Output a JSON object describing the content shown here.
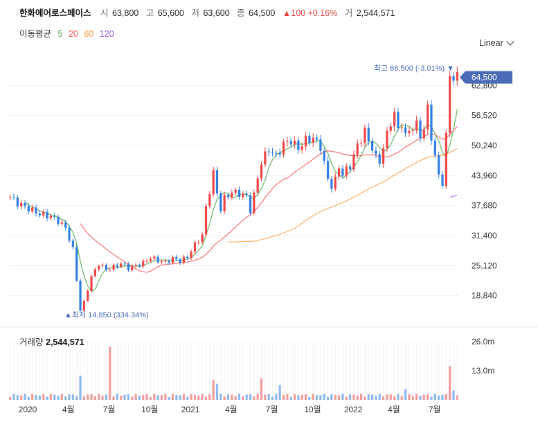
{
  "header": {
    "name": "한화에어로스페이스",
    "open_label": "시",
    "open": "63,800",
    "high_label": "고",
    "high": "65,600",
    "low_label": "저",
    "low": "63,600",
    "close_label": "종",
    "close": "64,500",
    "change": "▲100 +0.16%",
    "volume_label": "거",
    "volume": "2,544,571"
  },
  "moving_averages": {
    "label": "이동평균",
    "periods": [
      {
        "label": "5",
        "color": "#3da63d"
      },
      {
        "label": "20",
        "color": "#ef5350"
      },
      {
        "label": "60",
        "color": "#ff9a40"
      },
      {
        "label": "120",
        "color": "#9b59e6"
      }
    ]
  },
  "scale_selector": {
    "label": "Linear",
    "icon": "chevron-down-icon"
  },
  "colors": {
    "up": "#ef4444",
    "down": "#2f7de0",
    "price_tag": "#4a6bb5"
  },
  "chart_data": {
    "type": "candlestick",
    "y_ticks": [
      "62,800",
      "56,520",
      "50,240",
      "43,960",
      "37,680",
      "31,400",
      "25,120",
      "18,840"
    ],
    "y_range": [
      12560,
      69080
    ],
    "x_ticks": [
      "2020",
      "4월",
      "7월",
      "10월",
      "2021",
      "4월",
      "7월",
      "10월",
      "2022",
      "4월",
      "7월"
    ],
    "current_price_tag": "64,500",
    "max_marker": {
      "label": "최고",
      "value": "66,500",
      "change": "(-3.01%)"
    },
    "min_marker": {
      "label": "최저",
      "value": "14,850",
      "change": "(334.34%)"
    },
    "price_path": [
      [
        0,
        39500
      ],
      [
        2,
        38200
      ],
      [
        5,
        37000
      ],
      [
        8,
        35900
      ],
      [
        11,
        35400
      ],
      [
        13,
        34500
      ],
      [
        15,
        33000
      ],
      [
        17,
        28500
      ],
      [
        18,
        22200
      ],
      [
        19,
        15800
      ],
      [
        20,
        17500
      ],
      [
        21,
        20200
      ],
      [
        22,
        22800
      ],
      [
        24,
        25500
      ],
      [
        26,
        24300
      ],
      [
        28,
        24800
      ],
      [
        30,
        25600
      ],
      [
        32,
        24600
      ],
      [
        34,
        25100
      ],
      [
        36,
        25700
      ],
      [
        38,
        26800
      ],
      [
        40,
        26200
      ],
      [
        42,
        25800
      ],
      [
        44,
        26600
      ],
      [
        46,
        26100
      ],
      [
        48,
        26900
      ],
      [
        50,
        29500
      ],
      [
        52,
        31500
      ],
      [
        53,
        37200
      ],
      [
        54,
        40800
      ],
      [
        55,
        44500
      ],
      [
        56,
        40200
      ],
      [
        57,
        37000
      ],
      [
        58,
        39200
      ],
      [
        60,
        40500
      ],
      [
        62,
        40200
      ],
      [
        64,
        39500
      ],
      [
        65,
        36800
      ],
      [
        66,
        39800
      ],
      [
        67,
        43500
      ],
      [
        68,
        46800
      ],
      [
        70,
        49500
      ],
      [
        72,
        48000
      ],
      [
        74,
        50500
      ],
      [
        76,
        51300
      ],
      [
        78,
        49600
      ],
      [
        80,
        51400
      ],
      [
        82,
        51800
      ],
      [
        84,
        50000
      ],
      [
        85,
        46500
      ],
      [
        86,
        43200
      ],
      [
        87,
        41800
      ],
      [
        88,
        43000
      ],
      [
        89,
        45800
      ],
      [
        90,
        44200
      ],
      [
        92,
        46000
      ],
      [
        94,
        50200
      ],
      [
        96,
        53200
      ],
      [
        97,
        51200
      ],
      [
        98,
        49800
      ],
      [
        99,
        47600
      ],
      [
        100,
        46900
      ],
      [
        101,
        49800
      ],
      [
        102,
        52500
      ],
      [
        103,
        55200
      ],
      [
        104,
        56800
      ],
      [
        105,
        53500
      ],
      [
        106,
        55000
      ],
      [
        107,
        52000
      ],
      [
        108,
        53500
      ],
      [
        110,
        54500
      ],
      [
        111,
        52500
      ],
      [
        112,
        53600
      ],
      [
        113,
        58000
      ],
      [
        114,
        52200
      ],
      [
        115,
        47700
      ],
      [
        116,
        44000
      ],
      [
        117,
        42500
      ],
      [
        118,
        52000
      ],
      [
        119,
        65200
      ],
      [
        120,
        64300
      ],
      [
        121,
        64500
      ]
    ],
    "volume_spikes": [
      [
        19,
        0.36
      ],
      [
        27,
        0.79
      ],
      [
        55,
        0.3
      ],
      [
        56,
        0.24
      ],
      [
        68,
        0.32
      ],
      [
        73,
        0.22
      ],
      [
        107,
        0.16
      ],
      [
        119,
        0.5
      ],
      [
        120,
        0.14
      ]
    ],
    "volume_ticks": [
      "26.0m",
      "13.0m"
    ],
    "volume_range": [
      0,
      30000000
    ],
    "volume_label": "거래량",
    "volume_value": "2,544,571"
  }
}
